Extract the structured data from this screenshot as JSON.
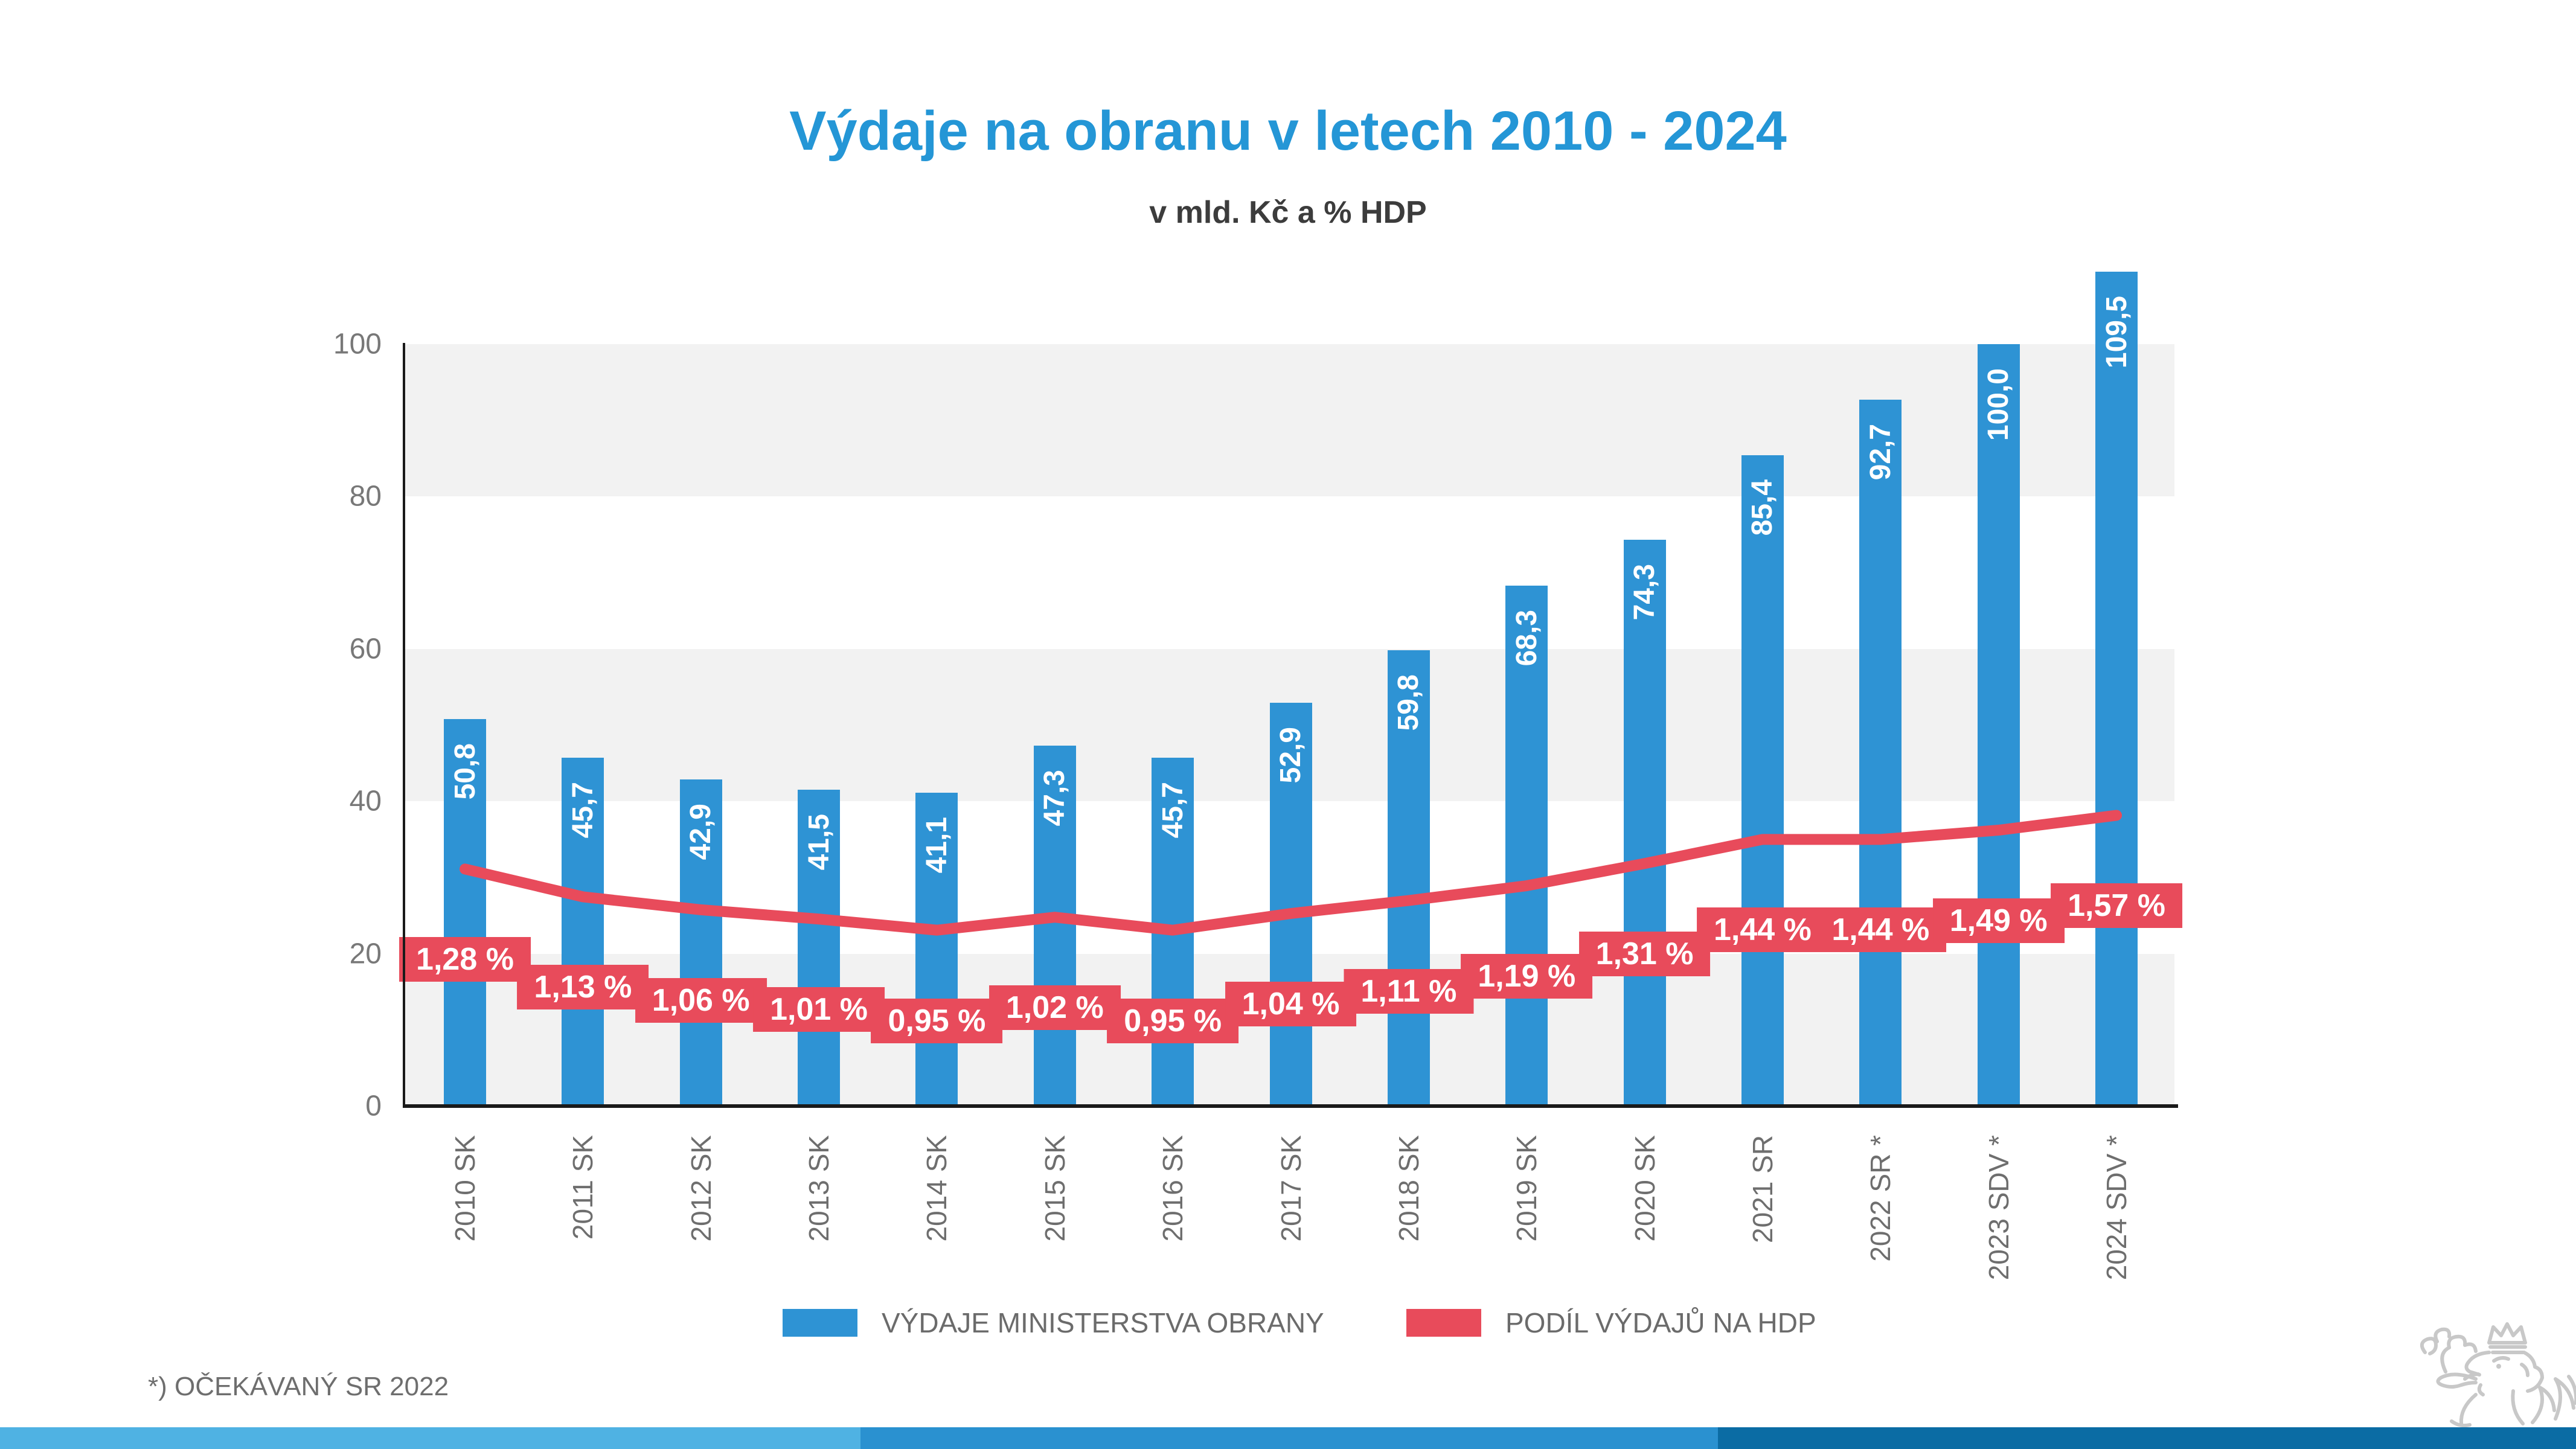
{
  "title": "Výdaje na obranu v letech 2010 - 2024",
  "subtitle": "v mld. Kč a % HDP",
  "footnote": "*) OČEKÁVANÝ SR 2022",
  "colors": {
    "title": "#2496d6",
    "bar": "#2e93d4",
    "line": "#e84b5b",
    "band": "#f2f2f2",
    "axis": "#1a1a1a",
    "strip_light": "#4fb2e3",
    "strip_mid": "#2a91d0",
    "strip_dark": "#0b6ca4",
    "logo_gray": "#c8c8c8"
  },
  "legend": {
    "items": [
      {
        "label": "VÝDAJE MINISTERSTVA OBRANY",
        "color": "#2e93d4"
      },
      {
        "label": "PODÍL VÝDAJŮ NA HDP",
        "color": "#e84b5b"
      }
    ]
  },
  "chart_data": {
    "type": "bar",
    "combo": "bar+line",
    "title": "Výdaje na obranu v letech 2010 - 2024",
    "subtitle": "v mld. Kč a % HDP",
    "categories": [
      "2010 SK",
      "2011 SK",
      "2012 SK",
      "2013 SK",
      "2014 SK",
      "2015 SK",
      "2016 SK",
      "2017 SK",
      "2018 SK",
      "2019 SK",
      "2020 SK",
      "2021 SR",
      "2022 SR *",
      "2023 SDV *",
      "2024 SDV *"
    ],
    "series": [
      {
        "name": "VÝDAJE MINISTERSTVA OBRANY",
        "type": "bar",
        "unit": "mld. Kč",
        "values": [
          50.8,
          45.7,
          42.9,
          41.5,
          41.1,
          47.3,
          45.7,
          52.9,
          59.8,
          68.3,
          74.3,
          85.4,
          92.7,
          100.0,
          109.5
        ],
        "labels": [
          "50,8",
          "45,7",
          "42,9",
          "41,5",
          "41,1",
          "47,3",
          "45,7",
          "52,9",
          "59,8",
          "68,3",
          "74,3",
          "85,4",
          "92,7",
          "100,0",
          "109,5"
        ]
      },
      {
        "name": "PODÍL VÝDAJŮ NA HDP",
        "type": "line",
        "unit": "% HDP",
        "values": [
          1.28,
          1.13,
          1.06,
          1.01,
          0.95,
          1.02,
          0.95,
          1.04,
          1.11,
          1.19,
          1.31,
          1.44,
          1.44,
          1.49,
          1.57
        ],
        "labels": [
          "1,28 %",
          "1,13 %",
          "1,06 %",
          "1,01 %",
          "0,95 %",
          "1,02 %",
          "0,95 %",
          "1,04 %",
          "1,11 %",
          "1,19 %",
          "1,31 %",
          "1,44 %",
          "1,44 %",
          "1,49 %",
          "1,57 %"
        ]
      }
    ],
    "y_axis": {
      "min": 0,
      "max": 100,
      "ticks": [
        0,
        20,
        40,
        60,
        80,
        100
      ]
    },
    "grid": "horizontal-bands",
    "legend_position": "bottom"
  }
}
